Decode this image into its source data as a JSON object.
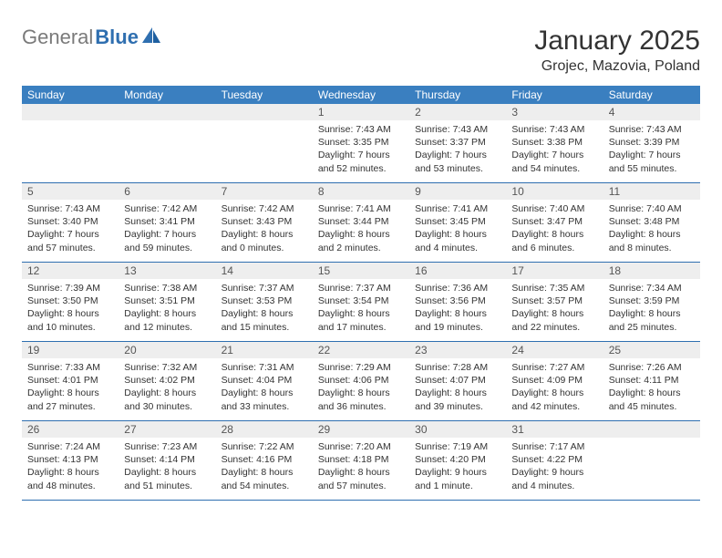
{
  "logo": {
    "gray": "General",
    "blue": "Blue"
  },
  "title": "January 2025",
  "subtitle": "Grojec, Mazovia, Poland",
  "colors": {
    "header_band": "#3a7fc0",
    "daynum_band": "#eeeeee",
    "rule": "#2f6fb0",
    "logo_gray": "#7a7a7a",
    "logo_blue": "#2f6fb0",
    "text": "#333333",
    "bg": "#ffffff"
  },
  "weekdays": [
    "Sunday",
    "Monday",
    "Tuesday",
    "Wednesday",
    "Thursday",
    "Friday",
    "Saturday"
  ],
  "weeks": [
    [
      {
        "num": "",
        "sunrise": "",
        "sunset": "",
        "daylight": ""
      },
      {
        "num": "",
        "sunrise": "",
        "sunset": "",
        "daylight": ""
      },
      {
        "num": "",
        "sunrise": "",
        "sunset": "",
        "daylight": ""
      },
      {
        "num": "1",
        "sunrise": "Sunrise: 7:43 AM",
        "sunset": "Sunset: 3:35 PM",
        "daylight": "Daylight: 7 hours and 52 minutes."
      },
      {
        "num": "2",
        "sunrise": "Sunrise: 7:43 AM",
        "sunset": "Sunset: 3:37 PM",
        "daylight": "Daylight: 7 hours and 53 minutes."
      },
      {
        "num": "3",
        "sunrise": "Sunrise: 7:43 AM",
        "sunset": "Sunset: 3:38 PM",
        "daylight": "Daylight: 7 hours and 54 minutes."
      },
      {
        "num": "4",
        "sunrise": "Sunrise: 7:43 AM",
        "sunset": "Sunset: 3:39 PM",
        "daylight": "Daylight: 7 hours and 55 minutes."
      }
    ],
    [
      {
        "num": "5",
        "sunrise": "Sunrise: 7:43 AM",
        "sunset": "Sunset: 3:40 PM",
        "daylight": "Daylight: 7 hours and 57 minutes."
      },
      {
        "num": "6",
        "sunrise": "Sunrise: 7:42 AM",
        "sunset": "Sunset: 3:41 PM",
        "daylight": "Daylight: 7 hours and 59 minutes."
      },
      {
        "num": "7",
        "sunrise": "Sunrise: 7:42 AM",
        "sunset": "Sunset: 3:43 PM",
        "daylight": "Daylight: 8 hours and 0 minutes."
      },
      {
        "num": "8",
        "sunrise": "Sunrise: 7:41 AM",
        "sunset": "Sunset: 3:44 PM",
        "daylight": "Daylight: 8 hours and 2 minutes."
      },
      {
        "num": "9",
        "sunrise": "Sunrise: 7:41 AM",
        "sunset": "Sunset: 3:45 PM",
        "daylight": "Daylight: 8 hours and 4 minutes."
      },
      {
        "num": "10",
        "sunrise": "Sunrise: 7:40 AM",
        "sunset": "Sunset: 3:47 PM",
        "daylight": "Daylight: 8 hours and 6 minutes."
      },
      {
        "num": "11",
        "sunrise": "Sunrise: 7:40 AM",
        "sunset": "Sunset: 3:48 PM",
        "daylight": "Daylight: 8 hours and 8 minutes."
      }
    ],
    [
      {
        "num": "12",
        "sunrise": "Sunrise: 7:39 AM",
        "sunset": "Sunset: 3:50 PM",
        "daylight": "Daylight: 8 hours and 10 minutes."
      },
      {
        "num": "13",
        "sunrise": "Sunrise: 7:38 AM",
        "sunset": "Sunset: 3:51 PM",
        "daylight": "Daylight: 8 hours and 12 minutes."
      },
      {
        "num": "14",
        "sunrise": "Sunrise: 7:37 AM",
        "sunset": "Sunset: 3:53 PM",
        "daylight": "Daylight: 8 hours and 15 minutes."
      },
      {
        "num": "15",
        "sunrise": "Sunrise: 7:37 AM",
        "sunset": "Sunset: 3:54 PM",
        "daylight": "Daylight: 8 hours and 17 minutes."
      },
      {
        "num": "16",
        "sunrise": "Sunrise: 7:36 AM",
        "sunset": "Sunset: 3:56 PM",
        "daylight": "Daylight: 8 hours and 19 minutes."
      },
      {
        "num": "17",
        "sunrise": "Sunrise: 7:35 AM",
        "sunset": "Sunset: 3:57 PM",
        "daylight": "Daylight: 8 hours and 22 minutes."
      },
      {
        "num": "18",
        "sunrise": "Sunrise: 7:34 AM",
        "sunset": "Sunset: 3:59 PM",
        "daylight": "Daylight: 8 hours and 25 minutes."
      }
    ],
    [
      {
        "num": "19",
        "sunrise": "Sunrise: 7:33 AM",
        "sunset": "Sunset: 4:01 PM",
        "daylight": "Daylight: 8 hours and 27 minutes."
      },
      {
        "num": "20",
        "sunrise": "Sunrise: 7:32 AM",
        "sunset": "Sunset: 4:02 PM",
        "daylight": "Daylight: 8 hours and 30 minutes."
      },
      {
        "num": "21",
        "sunrise": "Sunrise: 7:31 AM",
        "sunset": "Sunset: 4:04 PM",
        "daylight": "Daylight: 8 hours and 33 minutes."
      },
      {
        "num": "22",
        "sunrise": "Sunrise: 7:29 AM",
        "sunset": "Sunset: 4:06 PM",
        "daylight": "Daylight: 8 hours and 36 minutes."
      },
      {
        "num": "23",
        "sunrise": "Sunrise: 7:28 AM",
        "sunset": "Sunset: 4:07 PM",
        "daylight": "Daylight: 8 hours and 39 minutes."
      },
      {
        "num": "24",
        "sunrise": "Sunrise: 7:27 AM",
        "sunset": "Sunset: 4:09 PM",
        "daylight": "Daylight: 8 hours and 42 minutes."
      },
      {
        "num": "25",
        "sunrise": "Sunrise: 7:26 AM",
        "sunset": "Sunset: 4:11 PM",
        "daylight": "Daylight: 8 hours and 45 minutes."
      }
    ],
    [
      {
        "num": "26",
        "sunrise": "Sunrise: 7:24 AM",
        "sunset": "Sunset: 4:13 PM",
        "daylight": "Daylight: 8 hours and 48 minutes."
      },
      {
        "num": "27",
        "sunrise": "Sunrise: 7:23 AM",
        "sunset": "Sunset: 4:14 PM",
        "daylight": "Daylight: 8 hours and 51 minutes."
      },
      {
        "num": "28",
        "sunrise": "Sunrise: 7:22 AM",
        "sunset": "Sunset: 4:16 PM",
        "daylight": "Daylight: 8 hours and 54 minutes."
      },
      {
        "num": "29",
        "sunrise": "Sunrise: 7:20 AM",
        "sunset": "Sunset: 4:18 PM",
        "daylight": "Daylight: 8 hours and 57 minutes."
      },
      {
        "num": "30",
        "sunrise": "Sunrise: 7:19 AM",
        "sunset": "Sunset: 4:20 PM",
        "daylight": "Daylight: 9 hours and 1 minute."
      },
      {
        "num": "31",
        "sunrise": "Sunrise: 7:17 AM",
        "sunset": "Sunset: 4:22 PM",
        "daylight": "Daylight: 9 hours and 4 minutes."
      },
      {
        "num": "",
        "sunrise": "",
        "sunset": "",
        "daylight": ""
      }
    ]
  ]
}
